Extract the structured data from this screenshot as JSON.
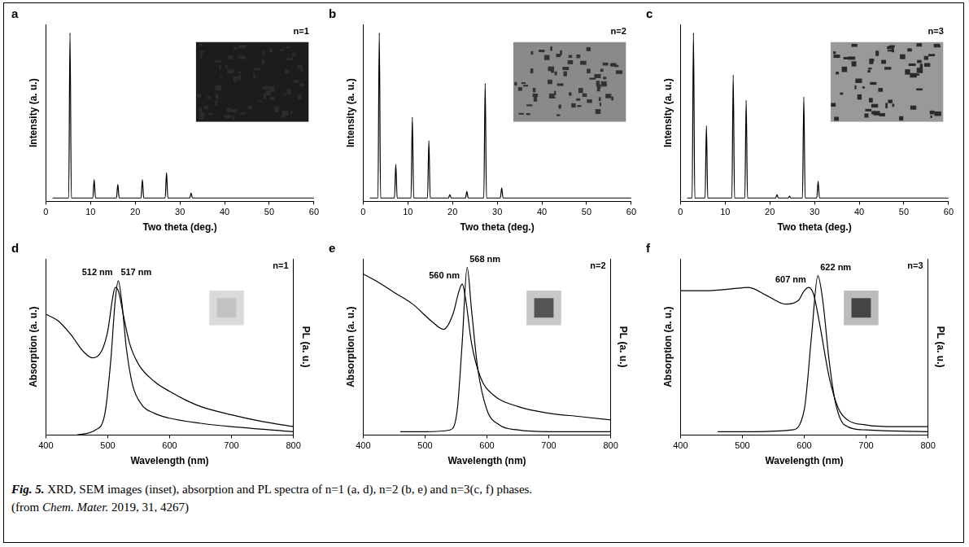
{
  "chart_data": [
    {
      "panel": "a",
      "type": "line",
      "label": "n=1",
      "xlabel": "Two theta (deg.)",
      "ylabel": "Intensity (a. u.)",
      "xlim": [
        0,
        60
      ],
      "xticks": [
        0,
        10,
        20,
        30,
        40,
        50,
        60
      ],
      "ylim": [
        0,
        1.05
      ],
      "tick_labels": "x",
      "grid": false,
      "series": [
        {
          "color": "#000000",
          "x": [
            1.5,
            5.1,
            5.4,
            5.7,
            10.5,
            10.8,
            11.1,
            15.8,
            16.1,
            16.4,
            21.3,
            21.6,
            21.9,
            26.7,
            27.0,
            27.3,
            32.2,
            32.5,
            32.8,
            60
          ],
          "values": [
            0.02,
            0.02,
            1.0,
            0.02,
            0.02,
            0.13,
            0.02,
            0.02,
            0.1,
            0.02,
            0.02,
            0.13,
            0.02,
            0.02,
            0.17,
            0.02,
            0.02,
            0.05,
            0.02,
            0.02
          ]
        }
      ]
    },
    {
      "panel": "b",
      "type": "line",
      "label": "n=2",
      "xlabel": "Two theta (deg.)",
      "ylabel": "Intensity (a. u.)",
      "xlim": [
        0,
        60
      ],
      "xticks": [
        0,
        10,
        20,
        30,
        40,
        50,
        60
      ],
      "ylim": [
        0,
        1.05
      ],
      "tick_labels": "x",
      "grid": false,
      "series": [
        {
          "color": "#000000",
          "x": [
            1.5,
            3.3,
            3.6,
            3.9,
            7.0,
            7.3,
            7.6,
            10.7,
            11.0,
            11.3,
            14.4,
            14.7,
            15.0,
            19.1,
            19.4,
            19.7,
            22.9,
            23.2,
            23.5,
            27.0,
            27.3,
            27.6,
            30.7,
            31.0,
            31.3,
            60
          ],
          "values": [
            0.02,
            0.02,
            1.0,
            0.02,
            0.02,
            0.22,
            0.02,
            0.02,
            0.5,
            0.02,
            0.02,
            0.36,
            0.02,
            0.02,
            0.04,
            0.02,
            0.02,
            0.06,
            0.02,
            0.02,
            0.7,
            0.02,
            0.02,
            0.08,
            0.02,
            0.02
          ]
        }
      ]
    },
    {
      "panel": "c",
      "type": "line",
      "label": "n=3",
      "xlabel": "Two theta (deg.)",
      "ylabel": "Intensity (a. u.)",
      "xlim": [
        0,
        60
      ],
      "xticks": [
        0,
        10,
        20,
        30,
        40,
        50,
        60
      ],
      "ylim": [
        0,
        1.05
      ],
      "tick_labels": "x",
      "grid": false,
      "series": [
        {
          "color": "#000000",
          "x": [
            1.5,
            2.6,
            2.9,
            3.2,
            5.5,
            5.8,
            6.1,
            11.5,
            11.8,
            12.1,
            14.4,
            14.7,
            15.0,
            21.3,
            21.6,
            21.9,
            24.1,
            24.4,
            24.7,
            27.3,
            27.6,
            27.9,
            30.5,
            30.8,
            31.1,
            60
          ],
          "values": [
            0.02,
            0.02,
            1.0,
            0.02,
            0.02,
            0.45,
            0.02,
            0.02,
            0.75,
            0.02,
            0.02,
            0.6,
            0.02,
            0.02,
            0.04,
            0.02,
            0.02,
            0.03,
            0.02,
            0.02,
            0.62,
            0.02,
            0.02,
            0.12,
            0.02,
            0.02
          ]
        }
      ]
    },
    {
      "panel": "d",
      "type": "line",
      "label": "n=1",
      "xlabel": "Wavelength (nm)",
      "ylabel": "Absorption (a. u.)",
      "y2label": "PL (a. u.)",
      "xlim": [
        400,
        800
      ],
      "xticks": [
        400,
        500,
        600,
        700,
        800
      ],
      "ylim": [
        0,
        1.05
      ],
      "y2lim": [
        0,
        1.05
      ],
      "tick_labels": "x",
      "grid": false,
      "annotations": [
        {
          "text": "512 nm",
          "x": 512
        },
        {
          "text": "517 nm",
          "x": 517
        }
      ],
      "series": [
        {
          "color": "#000000",
          "x": [
            400,
            420,
            440,
            460,
            475,
            490,
            500,
            508,
            512,
            517,
            525,
            535,
            550,
            575,
            600,
            625,
            650,
            700,
            750,
            800
          ],
          "values": [
            0.72,
            0.68,
            0.6,
            0.5,
            0.46,
            0.5,
            0.62,
            0.82,
            0.88,
            0.86,
            0.72,
            0.55,
            0.42,
            0.32,
            0.26,
            0.21,
            0.17,
            0.12,
            0.08,
            0.05
          ]
        },
        {
          "color": "#000000",
          "axis": "y2",
          "x": [
            450,
            480,
            495,
            505,
            512,
            517,
            523,
            530,
            540,
            555,
            575,
            600,
            650,
            700,
            800
          ],
          "values": [
            0.0,
            0.03,
            0.12,
            0.45,
            0.8,
            0.92,
            0.78,
            0.52,
            0.3,
            0.18,
            0.13,
            0.1,
            0.07,
            0.05,
            0.02
          ]
        }
      ]
    },
    {
      "panel": "e",
      "type": "line",
      "label": "n=2",
      "xlabel": "Wavelength (nm)",
      "ylabel": "Absorption (a. u.)",
      "y2label": "PL (a. u.)",
      "xlim": [
        400,
        800
      ],
      "xticks": [
        400,
        500,
        600,
        700,
        800
      ],
      "ylim": [
        0,
        1.05
      ],
      "y2lim": [
        0,
        1.05
      ],
      "tick_labels": "x",
      "grid": false,
      "annotations": [
        {
          "text": "560 nm",
          "x": 560
        },
        {
          "text": "568 nm",
          "x": 568
        }
      ],
      "series": [
        {
          "color": "#000000",
          "x": [
            400,
            420,
            450,
            480,
            510,
            530,
            545,
            555,
            560,
            566,
            575,
            590,
            610,
            650,
            700,
            750,
            800
          ],
          "values": [
            0.96,
            0.92,
            0.85,
            0.78,
            0.68,
            0.63,
            0.72,
            0.86,
            0.9,
            0.8,
            0.55,
            0.34,
            0.24,
            0.17,
            0.13,
            0.11,
            0.09
          ]
        },
        {
          "color": "#000000",
          "axis": "y2",
          "x": [
            460,
            500,
            540,
            552,
            560,
            568,
            575,
            585,
            600,
            620,
            650,
            700,
            800
          ],
          "values": [
            0.02,
            0.02,
            0.03,
            0.15,
            0.55,
            1.0,
            0.75,
            0.4,
            0.15,
            0.06,
            0.03,
            0.02,
            0.02
          ]
        }
      ]
    },
    {
      "panel": "f",
      "type": "line",
      "label": "n=3",
      "xlabel": "Wavelength (nm)",
      "ylabel": "Absorption (a. u.)",
      "y2label": "PL (a. u.)",
      "xlim": [
        400,
        800
      ],
      "xticks": [
        400,
        500,
        600,
        700,
        800
      ],
      "ylim": [
        0,
        1.05
      ],
      "y2lim": [
        0,
        1.05
      ],
      "tick_labels": "x",
      "grid": false,
      "annotations": [
        {
          "text": "607 nm",
          "x": 607
        },
        {
          "text": "622 nm",
          "x": 622
        }
      ],
      "series": [
        {
          "color": "#000000",
          "x": [
            400,
            440,
            480,
            510,
            540,
            570,
            590,
            600,
            607,
            615,
            625,
            640,
            655,
            670,
            700,
            750,
            800
          ],
          "values": [
            0.86,
            0.86,
            0.87,
            0.88,
            0.83,
            0.78,
            0.8,
            0.86,
            0.88,
            0.84,
            0.66,
            0.35,
            0.16,
            0.09,
            0.06,
            0.05,
            0.05
          ]
        },
        {
          "color": "#000000",
          "axis": "y2",
          "x": [
            460,
            520,
            580,
            600,
            612,
            622,
            630,
            640,
            650,
            665,
            700,
            800
          ],
          "values": [
            0.02,
            0.02,
            0.03,
            0.15,
            0.6,
            0.95,
            0.8,
            0.45,
            0.2,
            0.06,
            0.03,
            0.02
          ]
        }
      ]
    }
  ],
  "caption": [
    [
      {
        "text": "Fig. 5.",
        "italic": true,
        "bold": true
      },
      {
        "text": " XRD, SEM images (inset), absorption and PL spectra of n=1 (a, d), n=2 (b, e) and n=3(c, f) phases."
      }
    ],
    [
      {
        "text": "(from "
      },
      {
        "text": "Chem. Mater.",
        "italic": true
      },
      {
        "text": " 2019, 31, 4267)"
      }
    ]
  ]
}
